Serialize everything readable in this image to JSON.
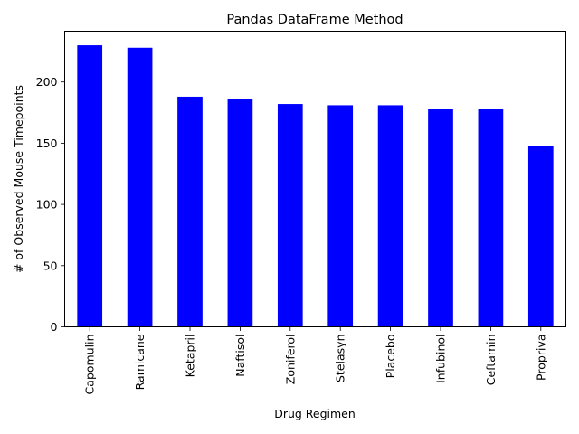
{
  "chart_data": {
    "type": "bar",
    "title": "Pandas DataFrame Method",
    "xlabel": "Drug Regimen",
    "ylabel": "# of Observed Mouse Timepoints",
    "categories": [
      "Capomulin",
      "Ramicane",
      "Ketapril",
      "Naftisol",
      "Zoniferol",
      "Stelasyn",
      "Placebo",
      "Infubinol",
      "Ceftamin",
      "Propriva"
    ],
    "values": [
      230,
      228,
      188,
      186,
      182,
      181,
      181,
      178,
      178,
      148
    ],
    "ylim": [
      0,
      241.5
    ],
    "yticks": [
      0,
      50,
      100,
      150,
      200
    ],
    "bar_color": "#0000ff",
    "grid": false,
    "legend": "none"
  }
}
